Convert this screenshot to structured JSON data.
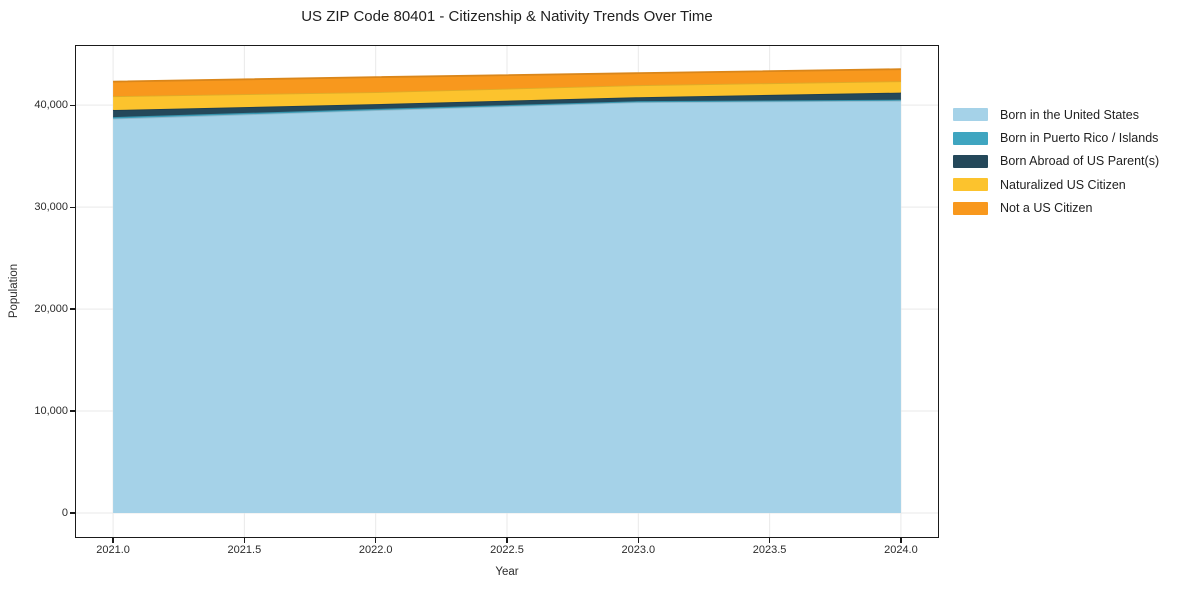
{
  "title": "US ZIP Code 80401 - Citizenship & Nativity Trends Over Time",
  "chart_data": {
    "type": "area",
    "stacked": true,
    "x": [
      2021,
      2022,
      2023,
      2024
    ],
    "series": [
      {
        "name": "Born in the United States",
        "color": "#A5D2E8",
        "values": [
          38680,
          39510,
          40290,
          40440
        ]
      },
      {
        "name": "Born in Puerto Rico / Islands",
        "color": "#3FA5C0",
        "values": [
          150,
          120,
          100,
          100
        ]
      },
      {
        "name": "Born Abroad of US Parent(s)",
        "color": "#24485A",
        "values": [
          690,
          470,
          390,
          690
        ]
      },
      {
        "name": "Naturalized US Citizen",
        "color": "#FCC32D",
        "values": [
          1360,
          1180,
          1180,
          1120
        ]
      },
      {
        "name": "Not a US Citizen",
        "color": "#F8981D",
        "values": [
          1430,
          1470,
          1180,
          1180
        ]
      }
    ],
    "xlabel": "Year",
    "ylabel": "Population",
    "x_ticks": [
      "2021.0",
      "2021.5",
      "2022.0",
      "2022.5",
      "2023.0",
      "2023.5",
      "2024.0"
    ],
    "x_tick_values": [
      2021.0,
      2021.5,
      2022.0,
      2022.5,
      2023.0,
      2023.5,
      2024.0
    ],
    "y_ticks": [
      "0",
      "10,000",
      "20,000",
      "30,000",
      "40,000"
    ],
    "y_tick_values": [
      0,
      10000,
      20000,
      30000,
      40000
    ],
    "xlim": [
      2020.855,
      2024.145
    ],
    "ylim": [
      -2450,
      45900
    ],
    "grid": true,
    "grid_color": "#e9e9e9",
    "spine_color": "#1a1a1a",
    "legend_position": "right-outside"
  }
}
